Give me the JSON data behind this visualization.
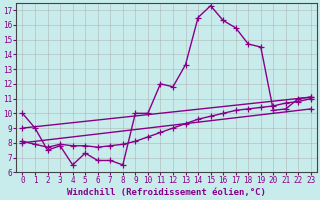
{
  "xlabel": "Windchill (Refroidissement éolien,°C)",
  "bg_color": "#c8ecec",
  "line_color": "#880088",
  "grid_color": "#aaaaaa",
  "xlim": [
    -0.5,
    23.5
  ],
  "ylim": [
    6,
    17.5
  ],
  "yticks": [
    6,
    7,
    8,
    9,
    10,
    11,
    12,
    13,
    14,
    15,
    16,
    17
  ],
  "xticks": [
    0,
    1,
    2,
    3,
    4,
    5,
    6,
    7,
    8,
    9,
    10,
    11,
    12,
    13,
    14,
    15,
    16,
    17,
    18,
    19,
    20,
    21,
    22,
    23
  ],
  "series": [
    {
      "x": [
        0,
        1,
        2,
        3,
        4,
        5,
        6,
        7,
        8,
        9,
        10,
        11,
        12,
        13,
        14,
        15,
        16,
        17,
        18,
        19,
        20,
        21,
        22,
        23
      ],
      "y": [
        10.0,
        9.0,
        7.5,
        7.8,
        6.5,
        7.3,
        6.8,
        6.8,
        6.5,
        10.0,
        10.0,
        12.0,
        11.8,
        13.3,
        16.5,
        17.3,
        16.3,
        15.8,
        14.7,
        14.5,
        10.2,
        10.3,
        11.0,
        11.1
      ]
    },
    {
      "x": [
        0,
        23
      ],
      "y": [
        9.0,
        11.1
      ]
    },
    {
      "x": [
        0,
        1,
        2,
        3,
        4,
        5,
        6,
        7,
        8,
        9,
        10,
        11,
        12,
        13,
        14,
        15,
        16,
        17,
        18,
        19,
        20,
        21,
        22,
        23
      ],
      "y": [
        8.1,
        7.9,
        7.7,
        7.9,
        7.8,
        7.8,
        7.7,
        7.8,
        7.9,
        8.1,
        8.4,
        8.7,
        9.0,
        9.3,
        9.6,
        9.8,
        10.0,
        10.2,
        10.3,
        10.4,
        10.5,
        10.7,
        10.8,
        11.0
      ]
    },
    {
      "x": [
        0,
        23
      ],
      "y": [
        8.0,
        10.3
      ]
    }
  ],
  "marker": "+",
  "markersize": 4,
  "linewidth": 1.0,
  "tick_fontsize": 5.5,
  "label_fontsize": 6.5
}
